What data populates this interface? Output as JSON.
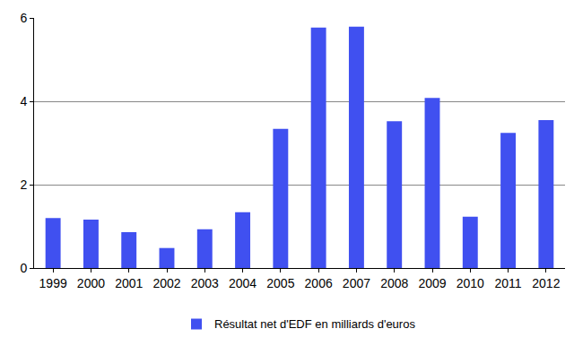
{
  "chart_data": {
    "type": "bar",
    "categories": [
      "1999",
      "2000",
      "2001",
      "2002",
      "2003",
      "2004",
      "2005",
      "2006",
      "2007",
      "2008",
      "2009",
      "2010",
      "2011",
      "2012"
    ],
    "series": [
      {
        "name": "Résultat net d'EDF en milliards d'euros",
        "color": "#4050f0",
        "values": [
          1.2,
          1.16,
          0.86,
          0.48,
          0.93,
          1.34,
          3.34,
          5.77,
          5.79,
          3.52,
          4.08,
          1.23,
          3.24,
          3.55
        ]
      }
    ],
    "ylim": [
      0,
      6
    ],
    "yticks": [
      0,
      2,
      4,
      6
    ],
    "grid": true,
    "legend": "bottom"
  }
}
